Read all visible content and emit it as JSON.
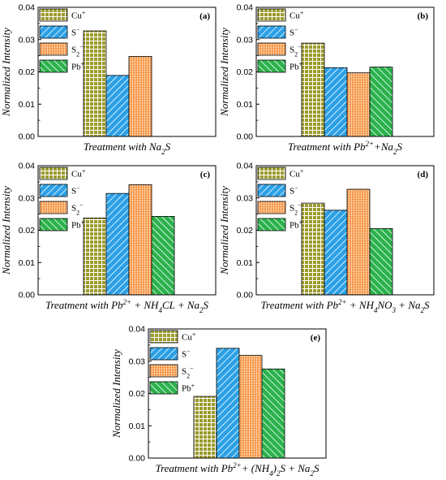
{
  "colors": {
    "Cu+": "#9c9a2c",
    "S-": "#2ba0e6",
    "S2-": "#f4822a",
    "Pb+": "#2bb24c"
  },
  "chart_data": [
    {
      "type": "bar",
      "panel_label": "(a)",
      "ylabel": "Normalized Intensity",
      "xlabel": {
        "parts": [
          {
            "t": "Treatment with Na"
          },
          {
            "t": "2",
            "sub": true
          },
          {
            "t": "S"
          }
        ]
      },
      "ylim": [
        0,
        0.04
      ],
      "yticks": [
        "0.00",
        "0.01",
        "0.02",
        "0.03",
        "0.04"
      ],
      "legend_position": "top-left",
      "series": [
        {
          "name": "Cu+",
          "value": 0.0327
        },
        {
          "name": "S-",
          "value": 0.0189
        },
        {
          "name": "S2-",
          "value": 0.0248
        },
        {
          "name": "Pb+",
          "value": 0.0
        }
      ]
    },
    {
      "type": "bar",
      "panel_label": "(b)",
      "ylabel": "Normalized Intensity",
      "xlabel": {
        "parts": [
          {
            "t": "Treatment with Pb"
          },
          {
            "t": "2+",
            "sup": true
          },
          {
            "t": "+Na"
          },
          {
            "t": "2",
            "sub": true
          },
          {
            "t": "S"
          }
        ]
      },
      "ylim": [
        0,
        0.04
      ],
      "yticks": [
        "0.00",
        "0.01",
        "0.02",
        "0.03",
        "0.04"
      ],
      "legend_position": "top-left",
      "series": [
        {
          "name": "Cu+",
          "value": 0.0289
        },
        {
          "name": "S-",
          "value": 0.0213
        },
        {
          "name": "S2-",
          "value": 0.0197
        },
        {
          "name": "Pb+",
          "value": 0.0215
        }
      ]
    },
    {
      "type": "bar",
      "panel_label": "(c)",
      "ylabel": "Normalized Intensity",
      "xlabel": {
        "parts": [
          {
            "t": "Treatment with Pb"
          },
          {
            "t": "2+",
            "sup": true
          },
          {
            "t": " + NH"
          },
          {
            "t": "4",
            "sub": true
          },
          {
            "t": "CL + Na"
          },
          {
            "t": "2",
            "sub": true
          },
          {
            "t": "S"
          }
        ]
      },
      "ylim": [
        0,
        0.04
      ],
      "yticks": [
        "0.00",
        "0.01",
        "0.02",
        "0.03",
        "0.04"
      ],
      "legend_position": "top-left",
      "series": [
        {
          "name": "Cu+",
          "value": 0.0238
        },
        {
          "name": "S-",
          "value": 0.0314
        },
        {
          "name": "S2-",
          "value": 0.0341
        },
        {
          "name": "Pb+",
          "value": 0.0243
        }
      ]
    },
    {
      "type": "bar",
      "panel_label": "(d)",
      "ylabel": "Normalized Intensity",
      "xlabel": {
        "parts": [
          {
            "t": "Treatment with Pb"
          },
          {
            "t": "2+",
            "sup": true
          },
          {
            "t": " + NH"
          },
          {
            "t": "4",
            "sub": true
          },
          {
            "t": "NO"
          },
          {
            "t": "3",
            "sub": true
          },
          {
            "t": " + Na"
          },
          {
            "t": "2",
            "sub": true
          },
          {
            "t": "S"
          }
        ]
      },
      "ylim": [
        0,
        0.04
      ],
      "yticks": [
        "0.00",
        "0.01",
        "0.02",
        "0.03",
        "0.04"
      ],
      "legend_position": "top-left",
      "series": [
        {
          "name": "Cu+",
          "value": 0.0284
        },
        {
          "name": "S-",
          "value": 0.0262
        },
        {
          "name": "S2-",
          "value": 0.0327
        },
        {
          "name": "Pb+",
          "value": 0.0205
        }
      ]
    },
    {
      "type": "bar",
      "panel_label": "(e)",
      "ylabel": "Normalized Intensity",
      "xlabel": {
        "parts": [
          {
            "t": "Treatment with Pb"
          },
          {
            "t": "2+",
            "sup": true
          },
          {
            "t": "+ (NH"
          },
          {
            "t": "4",
            "sub": true
          },
          {
            "t": ")"
          },
          {
            "t": "2",
            "sub": true
          },
          {
            "t": "S + Na"
          },
          {
            "t": "2",
            "sub": true
          },
          {
            "t": "S"
          }
        ]
      },
      "ylim": [
        0,
        0.04
      ],
      "yticks": [
        "0.00",
        "0.01",
        "0.02",
        "0.03",
        "0.04"
      ],
      "legend_position": "top-left",
      "series": [
        {
          "name": "Cu+",
          "value": 0.0191
        },
        {
          "name": "S-",
          "value": 0.034
        },
        {
          "name": "S2-",
          "value": 0.0318
        },
        {
          "name": "Pb+",
          "value": 0.0276
        }
      ]
    }
  ]
}
